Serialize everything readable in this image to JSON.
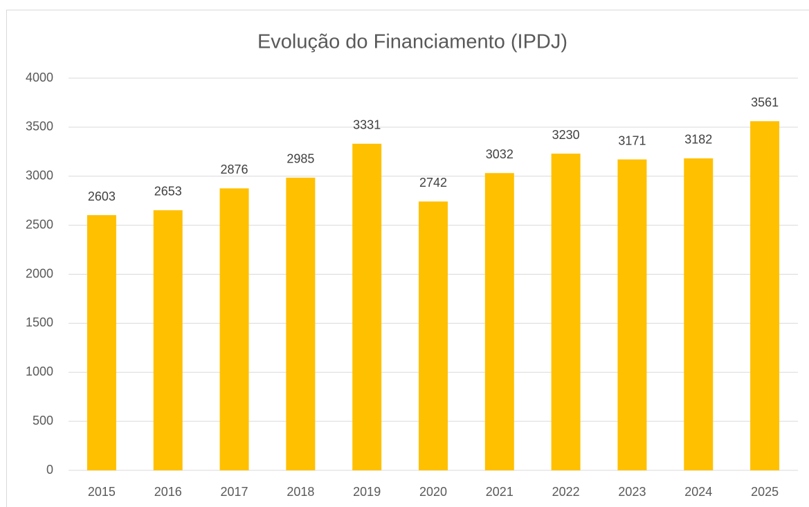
{
  "chart_data": {
    "type": "bar",
    "title": "Evolução do Financiamento (IPDJ)",
    "categories": [
      "2015",
      "2016",
      "2017",
      "2018",
      "2019",
      "2020",
      "2021",
      "2022",
      "2023",
      "2024",
      "2025"
    ],
    "values": [
      2603,
      2653,
      2876,
      2985,
      3331,
      2742,
      3032,
      3230,
      3171,
      3182,
      3561
    ],
    "color": "#ffc000",
    "ylim": [
      0,
      4000
    ],
    "yticks": [
      0,
      500,
      1000,
      1500,
      2000,
      2500,
      3000,
      3500,
      4000
    ],
    "grid": true
  }
}
